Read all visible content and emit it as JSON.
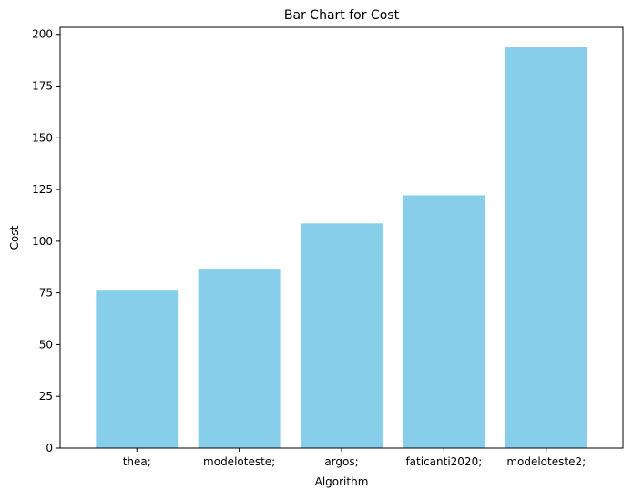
{
  "chart_data": {
    "type": "bar",
    "title": "Bar Chart for Cost",
    "xlabel": "Algorithm",
    "ylabel": "Cost",
    "categories": [
      "thea;",
      "modeloteste;",
      "argos;",
      "faticanti2020;",
      "modeloteste2;"
    ],
    "values": [
      76.5,
      86.7,
      108.6,
      122.2,
      193.7
    ],
    "ylim": [
      0,
      203.4
    ],
    "yticks": [
      0,
      25,
      50,
      75,
      100,
      125,
      150,
      175,
      200
    ],
    "grid": false,
    "legend": "none",
    "colors": {
      "bar": "#87CEEB",
      "axis": "#000000",
      "background": "#ffffff"
    }
  }
}
